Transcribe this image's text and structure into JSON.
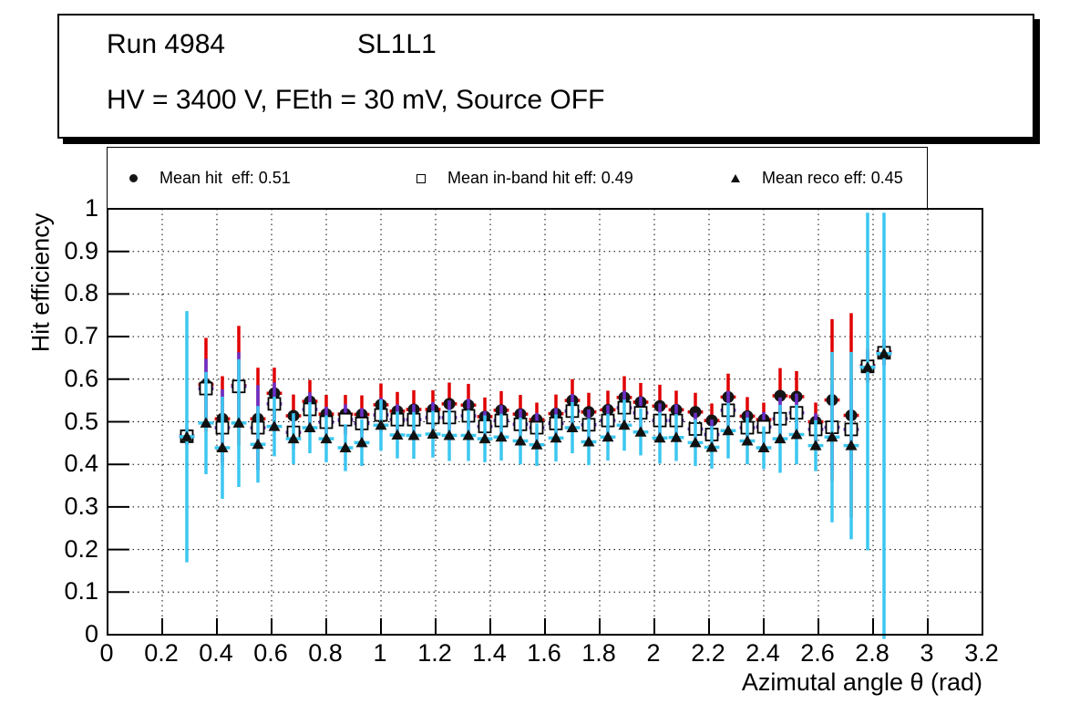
{
  "title_box": {
    "run_label": "Run 4984",
    "layer_label": "SL1L1",
    "conditions": "HV = 3400 V, FEth = 30 mV, Source OFF"
  },
  "legend": {
    "entries": [
      {
        "marker": "filled-circle",
        "label": "Mean hit  eff: 0.51"
      },
      {
        "marker": "open-square",
        "label": "Mean in-band hit eff: 0.49"
      },
      {
        "marker": "filled-triangle",
        "label": "Mean reco eff: 0.45"
      }
    ]
  },
  "axes": {
    "x_title": "Azimutal angle θ (rad)",
    "y_title": "Hit efficiency"
  },
  "colors": {
    "hit_error": "#e00000",
    "inband_error": "#6a2fc9",
    "reco_error": "#3cc7f0",
    "marker_dark": "#151515",
    "grid": "#000000",
    "frame": "#000000",
    "background": "#ffffff"
  },
  "chart_data": {
    "type": "scatter",
    "title": "Run 4984 SL1L1",
    "subtitle": "HV = 3400 V, FEth = 30 mV, Source OFF",
    "xlabel": "Azimutal angle θ (rad)",
    "ylabel": "Hit efficiency",
    "xlim": [
      0,
      3.2
    ],
    "ylim": [
      0,
      1
    ],
    "grid": true,
    "legend_position": "top",
    "x_ticks": [
      0,
      0.2,
      0.4,
      0.6,
      0.8,
      1,
      1.2,
      1.4,
      1.6,
      1.8,
      2,
      2.2,
      2.4,
      2.6,
      2.8,
      3,
      3.2
    ],
    "x_tick_labels": [
      "0",
      "0.2",
      "0.4",
      "0.6",
      "0.8",
      "1",
      "1.2",
      "1.4",
      "1.6",
      "1.8",
      "2",
      "2.2",
      "2.4",
      "2.6",
      "2.8",
      "3",
      "3.2"
    ],
    "y_ticks": [
      0,
      0.1,
      0.2,
      0.3,
      0.4,
      0.5,
      0.6,
      0.7,
      0.8,
      0.9,
      1
    ],
    "y_tick_labels": [
      "0",
      "0.1",
      "0.2",
      "0.3",
      "0.4",
      "0.5",
      "0.6",
      "0.7",
      "0.8",
      "0.9",
      "1"
    ],
    "x_err_half_width": 0.028,
    "clamp": {
      "y_low": -0.022,
      "y_high": 0.991
    },
    "x": [
      0.29,
      0.36,
      0.42,
      0.48,
      0.55,
      0.61,
      0.68,
      0.74,
      0.8,
      0.87,
      0.93,
      1.0,
      1.06,
      1.12,
      1.19,
      1.25,
      1.32,
      1.38,
      1.44,
      1.51,
      1.57,
      1.64,
      1.7,
      1.76,
      1.83,
      1.89,
      1.95,
      2.02,
      2.08,
      2.15,
      2.21,
      2.27,
      2.34,
      2.4,
      2.46,
      2.52,
      2.59,
      2.65,
      2.72,
      2.78,
      2.84
    ],
    "series": [
      {
        "name": "Mean hit  eff: 0.51",
        "mean": 0.51,
        "marker": "filled-circle",
        "marker_color": "#151515",
        "error_color": "#e00000",
        "values": [
          0.466,
          0.587,
          0.507,
          0.585,
          0.507,
          0.567,
          0.514,
          0.548,
          0.518,
          0.518,
          0.517,
          0.54,
          0.525,
          0.529,
          0.529,
          0.542,
          0.539,
          0.512,
          0.527,
          0.518,
          0.505,
          0.519,
          0.55,
          0.523,
          0.528,
          0.557,
          0.546,
          0.537,
          0.528,
          0.523,
          0.503,
          0.558,
          0.513,
          0.505,
          0.561,
          0.559,
          0.5,
          0.551,
          0.515,
          0.632,
          0.664
        ],
        "errors": [
          0.02,
          0.11,
          0.1,
          0.14,
          0.12,
          0.06,
          0.05,
          0.05,
          0.045,
          0.045,
          0.045,
          0.05,
          0.045,
          0.045,
          0.045,
          0.05,
          0.05,
          0.045,
          0.045,
          0.045,
          0.04,
          0.045,
          0.05,
          0.045,
          0.045,
          0.05,
          0.045,
          0.05,
          0.045,
          0.045,
          0.04,
          0.055,
          0.045,
          0.04,
          0.065,
          0.06,
          0.045,
          0.19,
          0.24,
          0.04,
          0.03
        ]
      },
      {
        "name": "Mean in-band hit eff: 0.49",
        "mean": 0.49,
        "marker": "open-square",
        "marker_color": "#000000",
        "error_color": "#6a2fc9",
        "values": [
          0.466,
          0.578,
          0.486,
          0.583,
          0.486,
          0.542,
          0.475,
          0.529,
          0.499,
          0.505,
          0.496,
          0.516,
          0.505,
          0.505,
          0.51,
          0.51,
          0.514,
          0.489,
          0.503,
          0.494,
          0.486,
          0.496,
          0.525,
          0.493,
          0.503,
          0.533,
          0.521,
          0.503,
          0.503,
          0.483,
          0.47,
          0.527,
          0.486,
          0.488,
          0.507,
          0.521,
          0.482,
          0.487,
          0.482,
          0.63,
          0.662
        ],
        "errors": [
          0.02,
          0.07,
          0.09,
          0.08,
          0.1,
          0.05,
          0.04,
          0.04,
          0.036,
          0.036,
          0.036,
          0.04,
          0.036,
          0.036,
          0.036,
          0.04,
          0.04,
          0.036,
          0.036,
          0.036,
          0.035,
          0.036,
          0.04,
          0.036,
          0.036,
          0.04,
          0.038,
          0.04,
          0.038,
          0.038,
          0.035,
          0.045,
          0.038,
          0.035,
          0.05,
          0.045,
          0.038,
          0.1,
          0.12,
          0.035,
          0.03
        ]
      },
      {
        "name": "Mean reco eff: 0.45",
        "mean": 0.45,
        "marker": "filled-triangle",
        "marker_color": "#111111",
        "error_color": "#3cc7f0",
        "values": [
          0.465,
          0.497,
          0.439,
          0.497,
          0.447,
          0.489,
          0.46,
          0.486,
          0.46,
          0.439,
          0.451,
          0.492,
          0.469,
          0.468,
          0.471,
          0.468,
          0.468,
          0.46,
          0.464,
          0.455,
          0.446,
          0.462,
          0.486,
          0.453,
          0.464,
          0.492,
          0.476,
          0.462,
          0.463,
          0.451,
          0.44,
          0.479,
          0.455,
          0.439,
          0.46,
          0.47,
          0.444,
          0.464,
          0.444,
          0.628,
          0.66
        ],
        "errors": [
          0.295,
          0.12,
          0.12,
          0.15,
          0.09,
          0.07,
          0.06,
          0.06,
          0.055,
          0.055,
          0.055,
          0.06,
          0.055,
          0.055,
          0.055,
          0.06,
          0.06,
          0.055,
          0.055,
          0.055,
          0.05,
          0.055,
          0.06,
          0.055,
          0.055,
          0.06,
          0.055,
          0.06,
          0.055,
          0.055,
          0.05,
          0.065,
          0.055,
          0.05,
          0.08,
          0.07,
          0.06,
          0.2,
          0.22,
          0.43,
          0.67
        ]
      }
    ]
  }
}
